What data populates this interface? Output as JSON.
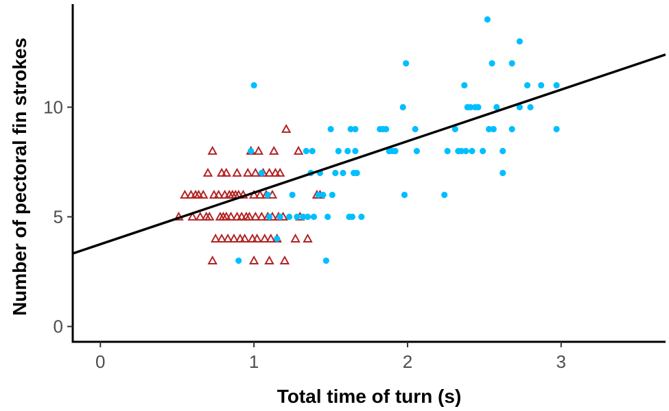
{
  "chart_data": {
    "type": "scatter",
    "title": "",
    "xlabel": "Total time of turn (s)",
    "ylabel": "Number of pectoral fin strokes",
    "xlim": [
      -0.18,
      3.68
    ],
    "ylim": [
      -0.7,
      14.7
    ],
    "x_ticks": [
      0,
      1,
      2,
      3
    ],
    "y_ticks": [
      0,
      5,
      10
    ],
    "x_tick_labels": [
      "0",
      "1",
      "2",
      "3"
    ],
    "y_tick_labels": [
      "0",
      "5",
      "10"
    ],
    "grid": false,
    "legend": "none",
    "series": [
      {
        "marker": "open-triangle",
        "color": "#b22222",
        "points": [
          [
            0.51,
            5
          ],
          [
            0.55,
            6
          ],
          [
            0.59,
            6
          ],
          [
            0.6,
            5
          ],
          [
            0.62,
            6
          ],
          [
            0.64,
            6
          ],
          [
            0.65,
            5
          ],
          [
            0.67,
            6
          ],
          [
            0.69,
            5
          ],
          [
            0.7,
            7
          ],
          [
            0.71,
            5
          ],
          [
            0.73,
            8
          ],
          [
            0.73,
            3
          ],
          [
            0.74,
            6
          ],
          [
            0.75,
            4
          ],
          [
            0.77,
            6
          ],
          [
            0.78,
            5
          ],
          [
            0.79,
            7
          ],
          [
            0.79,
            4
          ],
          [
            0.8,
            5
          ],
          [
            0.81,
            6
          ],
          [
            0.82,
            5
          ],
          [
            0.82,
            7
          ],
          [
            0.83,
            4
          ],
          [
            0.84,
            6
          ],
          [
            0.85,
            5
          ],
          [
            0.86,
            6
          ],
          [
            0.87,
            4
          ],
          [
            0.88,
            6
          ],
          [
            0.89,
            5
          ],
          [
            0.89,
            7
          ],
          [
            0.9,
            6
          ],
          [
            0.91,
            4
          ],
          [
            0.92,
            5
          ],
          [
            0.93,
            6
          ],
          [
            0.94,
            4
          ],
          [
            0.95,
            5
          ],
          [
            0.96,
            7
          ],
          [
            0.97,
            5
          ],
          [
            0.98,
            8
          ],
          [
            0.99,
            4
          ],
          [
            1.0,
            6
          ],
          [
            1.0,
            3
          ],
          [
            1.01,
            5
          ],
          [
            1.01,
            7
          ],
          [
            1.02,
            4
          ],
          [
            1.03,
            8
          ],
          [
            1.04,
            6
          ],
          [
            1.05,
            5
          ],
          [
            1.06,
            7
          ],
          [
            1.07,
            4
          ],
          [
            1.08,
            6
          ],
          [
            1.09,
            5
          ],
          [
            1.1,
            3
          ],
          [
            1.1,
            7
          ],
          [
            1.11,
            4
          ],
          [
            1.12,
            5
          ],
          [
            1.12,
            6
          ],
          [
            1.13,
            8
          ],
          [
            1.14,
            7
          ],
          [
            1.15,
            4
          ],
          [
            1.16,
            5
          ],
          [
            1.17,
            7
          ],
          [
            1.19,
            5
          ],
          [
            1.2,
            3
          ],
          [
            1.21,
            9
          ],
          [
            1.27,
            4
          ],
          [
            1.29,
            8
          ],
          [
            1.3,
            5
          ],
          [
            1.35,
            4
          ],
          [
            1.41,
            6
          ],
          [
            1.43,
            6
          ]
        ]
      },
      {
        "marker": "filled-circle",
        "color": "#00bfff",
        "points": [
          [
            0.9,
            3
          ],
          [
            0.98,
            8
          ],
          [
            1.0,
            11
          ],
          [
            1.05,
            7
          ],
          [
            1.09,
            6
          ],
          [
            1.1,
            5
          ],
          [
            1.15,
            4
          ],
          [
            1.17,
            5
          ],
          [
            1.23,
            5
          ],
          [
            1.25,
            6
          ],
          [
            1.28,
            5
          ],
          [
            1.32,
            5
          ],
          [
            1.34,
            8
          ],
          [
            1.35,
            5
          ],
          [
            1.37,
            7
          ],
          [
            1.38,
            8
          ],
          [
            1.39,
            5
          ],
          [
            1.42,
            6
          ],
          [
            1.43,
            7
          ],
          [
            1.45,
            6
          ],
          [
            1.47,
            3
          ],
          [
            1.48,
            5
          ],
          [
            1.5,
            9
          ],
          [
            1.51,
            6
          ],
          [
            1.53,
            7
          ],
          [
            1.55,
            8
          ],
          [
            1.58,
            7
          ],
          [
            1.61,
            8
          ],
          [
            1.62,
            5
          ],
          [
            1.63,
            9
          ],
          [
            1.64,
            5
          ],
          [
            1.65,
            7
          ],
          [
            1.66,
            9
          ],
          [
            1.66,
            8
          ],
          [
            1.67,
            7
          ],
          [
            1.7,
            5
          ],
          [
            1.82,
            9
          ],
          [
            1.84,
            9
          ],
          [
            1.86,
            9
          ],
          [
            1.88,
            8
          ],
          [
            1.9,
            8
          ],
          [
            1.92,
            8
          ],
          [
            1.97,
            10
          ],
          [
            1.98,
            6
          ],
          [
            1.99,
            12
          ],
          [
            2.05,
            9
          ],
          [
            2.06,
            8
          ],
          [
            2.24,
            6
          ],
          [
            2.26,
            8
          ],
          [
            2.31,
            9
          ],
          [
            2.33,
            8
          ],
          [
            2.35,
            8
          ],
          [
            2.37,
            11
          ],
          [
            2.38,
            8
          ],
          [
            2.39,
            10
          ],
          [
            2.41,
            10
          ],
          [
            2.42,
            8
          ],
          [
            2.44,
            10
          ],
          [
            2.46,
            10
          ],
          [
            2.49,
            8
          ],
          [
            2.52,
            14
          ],
          [
            2.53,
            9
          ],
          [
            2.55,
            12
          ],
          [
            2.56,
            9
          ],
          [
            2.58,
            10
          ],
          [
            2.62,
            8
          ],
          [
            2.62,
            7
          ],
          [
            2.68,
            12
          ],
          [
            2.68,
            9
          ],
          [
            2.73,
            13
          ],
          [
            2.73,
            10
          ],
          [
            2.78,
            11
          ],
          [
            2.8,
            10
          ],
          [
            2.87,
            11
          ],
          [
            2.97,
            11
          ],
          [
            2.97,
            9
          ]
        ]
      }
    ],
    "fit_line": {
      "intercept": 3.75,
      "slope": 2.35,
      "color": "#000000"
    }
  }
}
